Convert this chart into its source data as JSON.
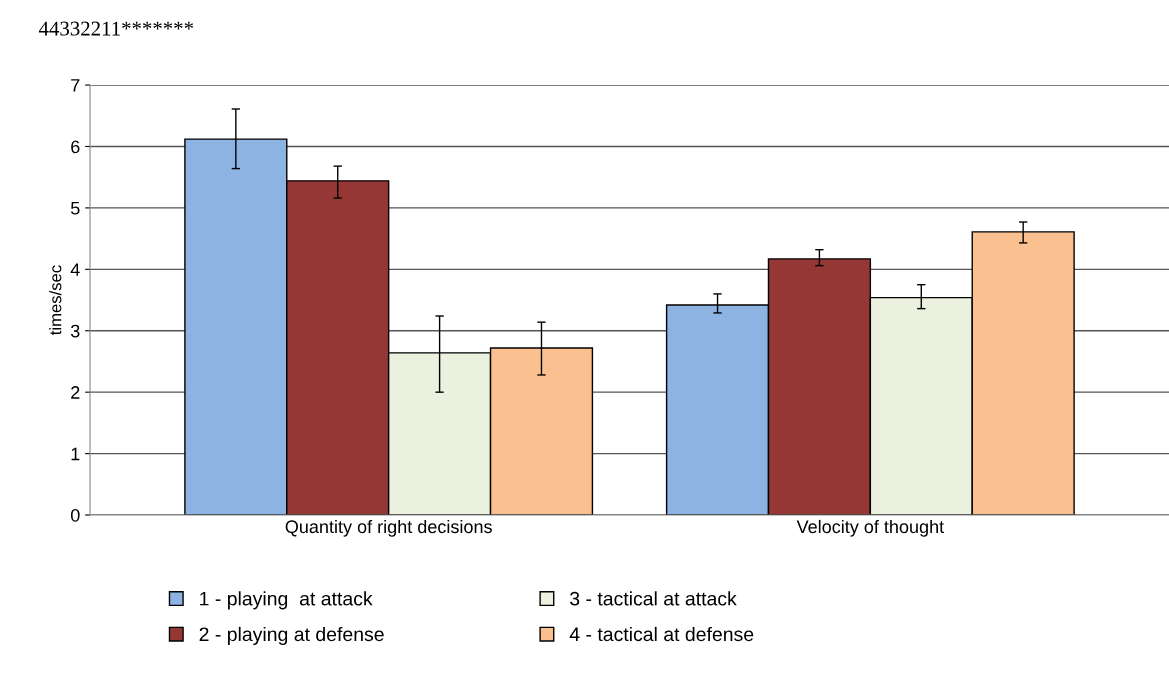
{
  "chart_data": {
    "type": "bar",
    "title": "44332211*******",
    "ylabel": "times/sec",
    "categories": [
      "Quantity of right decisions",
      "Velocity of thought"
    ],
    "series": [
      {
        "name": "1 - playing  at attack",
        "color": "#8db3e2",
        "values": [
          6.12,
          3.42
        ],
        "errors": [
          [
            5.64,
            6.61
          ],
          [
            3.29,
            3.6
          ]
        ]
      },
      {
        "name": "2 - playing at defense",
        "color": "#953735",
        "values": [
          5.44,
          4.17
        ],
        "errors": [
          [
            5.16,
            5.68
          ],
          [
            4.06,
            4.32
          ]
        ]
      },
      {
        "name": "3 - tactical at attack",
        "color": "#ebf1de",
        "values": [
          2.64,
          3.54
        ],
        "errors": [
          [
            2.0,
            3.24
          ],
          [
            3.36,
            3.75
          ]
        ]
      },
      {
        "name": "4 - tactical at defense",
        "color": "#fac090",
        "values": [
          2.72,
          4.61
        ],
        "errors": [
          [
            2.28,
            3.14
          ],
          [
            4.43,
            4.77
          ]
        ]
      }
    ],
    "ylim": [
      0,
      7
    ],
    "yticks": [
      0,
      1,
      2,
      3,
      4,
      5,
      6,
      7
    ],
    "grid": "y",
    "legend": "bottom"
  }
}
